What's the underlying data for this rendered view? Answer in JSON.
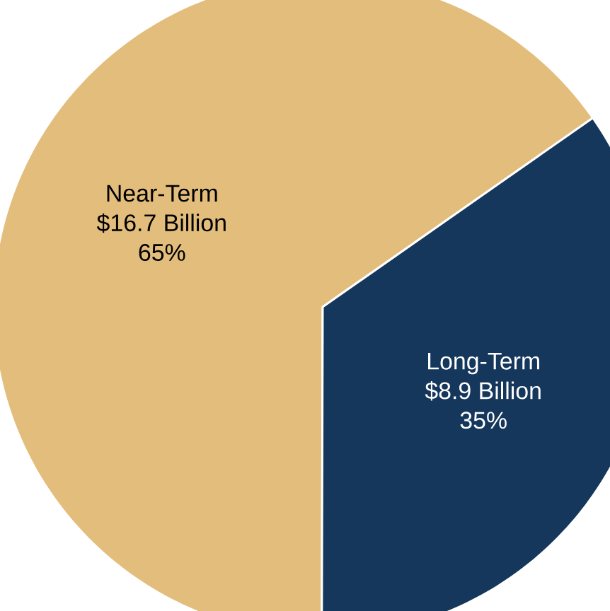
{
  "chart_data": {
    "type": "pie",
    "categories": [
      "Near-Term",
      "Long-Term"
    ],
    "values": [
      16.7,
      8.9
    ],
    "value_labels": [
      "$16.7 Billion",
      "$8.9 Billion"
    ],
    "annotations": [
      "65%",
      "35%"
    ],
    "colors": [
      "#e3bd7b",
      "#15375c"
    ]
  }
}
